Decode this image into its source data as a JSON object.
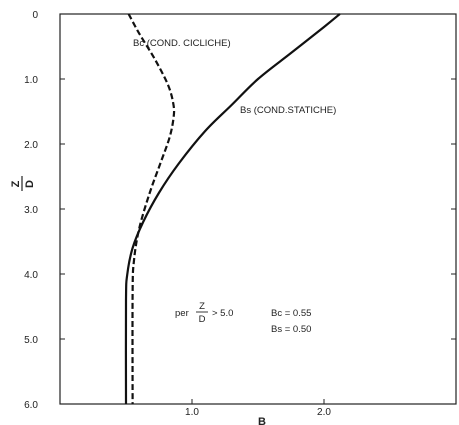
{
  "chart_data": {
    "type": "line",
    "title": "",
    "xlabel": "B",
    "ylabel": "Z/D",
    "ylabel_parts": {
      "numerator": "Z",
      "denominator": "D"
    },
    "xlim": [
      0.0,
      3.0
    ],
    "ylim": [
      0,
      6.0
    ],
    "y_inverted": true,
    "x_ticks": [
      {
        "value": 1.0,
        "label": "1.0"
      },
      {
        "value": 2.0,
        "label": "2.0"
      }
    ],
    "y_ticks": [
      {
        "value": 0,
        "label": "0"
      },
      {
        "value": 1.0,
        "label": "1.0"
      },
      {
        "value": 2.0,
        "label": "2.0"
      },
      {
        "value": 3.0,
        "label": "3.0"
      },
      {
        "value": 4.0,
        "label": "4.0"
      },
      {
        "value": 5.0,
        "label": "5.0"
      },
      {
        "value": 6.0,
        "label": "6.0"
      }
    ],
    "grid": false,
    "series": [
      {
        "name": "Bc (COND. CICLICHE)",
        "style": "dashed",
        "color": "#111111",
        "points": [
          {
            "x": 0.52,
            "y": 0.0
          },
          {
            "x": 0.6,
            "y": 0.3
          },
          {
            "x": 0.72,
            "y": 0.7
          },
          {
            "x": 0.82,
            "y": 1.1
          },
          {
            "x": 0.86,
            "y": 1.4
          },
          {
            "x": 0.86,
            "y": 1.6
          },
          {
            "x": 0.83,
            "y": 1.9
          },
          {
            "x": 0.76,
            "y": 2.3
          },
          {
            "x": 0.68,
            "y": 2.75
          },
          {
            "x": 0.6,
            "y": 3.3
          },
          {
            "x": 0.56,
            "y": 3.8
          },
          {
            "x": 0.55,
            "y": 4.3
          },
          {
            "x": 0.55,
            "y": 6.0
          }
        ]
      },
      {
        "name": "Bs (COND.STATICHE)",
        "style": "solid",
        "color": "#111111",
        "points": [
          {
            "x": 2.12,
            "y": 0.0
          },
          {
            "x": 2.0,
            "y": 0.2
          },
          {
            "x": 1.75,
            "y": 0.6
          },
          {
            "x": 1.5,
            "y": 1.0
          },
          {
            "x": 1.3,
            "y": 1.4
          },
          {
            "x": 1.1,
            "y": 1.8
          },
          {
            "x": 0.9,
            "y": 2.3
          },
          {
            "x": 0.75,
            "y": 2.75
          },
          {
            "x": 0.63,
            "y": 3.2
          },
          {
            "x": 0.55,
            "y": 3.6
          },
          {
            "x": 0.51,
            "y": 4.0
          },
          {
            "x": 0.5,
            "y": 4.4
          },
          {
            "x": 0.5,
            "y": 6.0
          }
        ]
      }
    ],
    "annotations": {
      "bc_label": "Bc (COND. CICLICHE)",
      "bs_label": "Bs (COND.STATICHE)",
      "per_text": "per",
      "frac_num": "Z",
      "frac_den": "D",
      "condition": "> 5.0",
      "bc_value": "Bc = 0.55",
      "bs_value": "Bs = 0.50"
    }
  }
}
